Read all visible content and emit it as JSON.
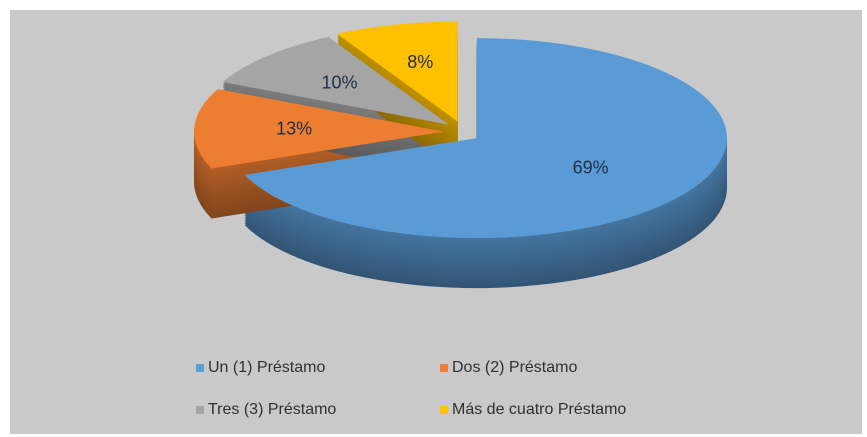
{
  "chart_data": {
    "type": "pie",
    "categories": [
      "Un (1) Préstamo",
      "Dos (2) Préstamo",
      "Tres (3) Préstamo",
      "Más de cuatro Préstamo"
    ],
    "values": [
      69,
      13,
      10,
      8
    ],
    "value_labels": [
      "69%",
      "13%",
      "10%",
      "8%"
    ],
    "colors": [
      "#5b9bd5",
      "#ed7d31",
      "#a5a5a5",
      "#ffc000"
    ],
    "legend": "bottom"
  }
}
